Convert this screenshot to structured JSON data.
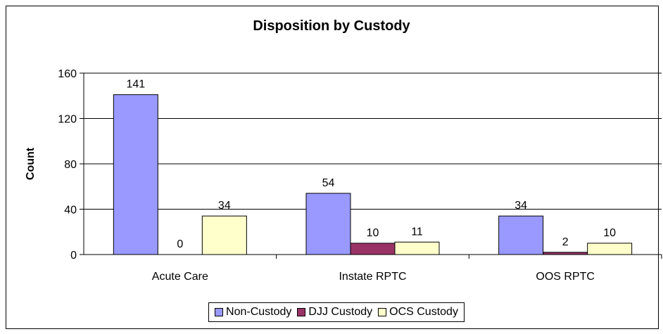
{
  "chart_data": {
    "type": "bar",
    "title": "Disposition by Custody",
    "xlabel": "",
    "ylabel": "Count",
    "ylim": [
      0,
      160
    ],
    "yticks": [
      0,
      40,
      80,
      120,
      160
    ],
    "grid": true,
    "legend_position": "bottom",
    "categories": [
      "Acute Care",
      "Instate RPTC",
      "OOS RPTC"
    ],
    "series": [
      {
        "name": "Non-Custody",
        "color": "#9999ff",
        "values": [
          141,
          54,
          34
        ]
      },
      {
        "name": "DJJ Custody",
        "color": "#993366",
        "values": [
          0,
          10,
          2
        ]
      },
      {
        "name": "OCS Custody",
        "color": "#ffffcc",
        "values": [
          34,
          11,
          10
        ]
      }
    ]
  }
}
